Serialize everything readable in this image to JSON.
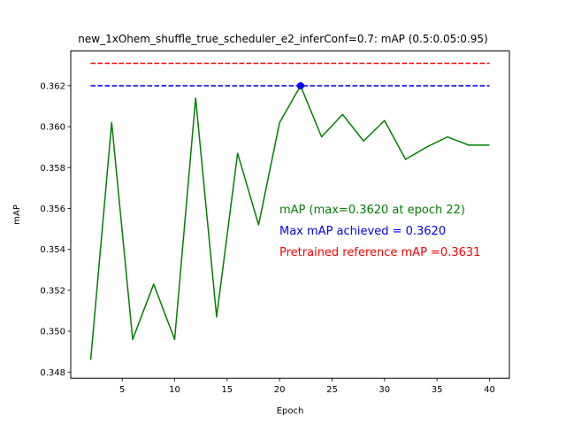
{
  "chart_data": {
    "type": "line",
    "title": "new_1xOhem_shuffle_true_scheduler_e2_inferConf=0.7:  mAP (0.5:0.05:0.95)",
    "xlabel": "Epoch",
    "ylabel": "mAP",
    "xlim": [
      0.1,
      41.9
    ],
    "ylim": [
      0.3477,
      0.3637
    ],
    "xticks": [
      5,
      10,
      15,
      20,
      25,
      30,
      35,
      40
    ],
    "yticks": [
      0.348,
      0.35,
      0.352,
      0.354,
      0.356,
      0.358,
      0.36,
      0.362
    ],
    "ytick_labels": [
      "0.348",
      "0.350",
      "0.352",
      "0.354",
      "0.356",
      "0.358",
      "0.360",
      "0.362"
    ],
    "grid": false,
    "series": [
      {
        "color": "#008000",
        "x": [
          2,
          4,
          6,
          8,
          10,
          12,
          14,
          16,
          18,
          20,
          22,
          24,
          26,
          28,
          30,
          32,
          34,
          36,
          38,
          40
        ],
        "values": [
          0.3486,
          0.3602,
          0.3496,
          0.3523,
          0.3496,
          0.3614,
          0.3507,
          0.3587,
          0.3552,
          0.3602,
          0.362,
          0.3595,
          0.3606,
          0.3593,
          0.3603,
          0.3584,
          0.359,
          0.3595,
          0.3591,
          0.3591
        ]
      }
    ],
    "max_point": {
      "x": 22,
      "y": 0.362,
      "color": "#0000ff"
    },
    "reference_lines": [
      {
        "y": 0.3631,
        "x_range": [
          2,
          40
        ],
        "color": "#ff0000",
        "style": "dashed"
      },
      {
        "y": 0.362,
        "x_range": [
          2,
          40
        ],
        "color": "#0000ff",
        "style": "dashed"
      }
    ],
    "annotations": [
      {
        "text": "mAP (max=0.3620 at epoch 22)",
        "color": "#008000"
      },
      {
        "text": "Max mAP achieved = 0.3620",
        "color": "#0000ff"
      },
      {
        "text": "Pretrained reference mAP =0.3631",
        "color": "#ff0000"
      }
    ]
  }
}
